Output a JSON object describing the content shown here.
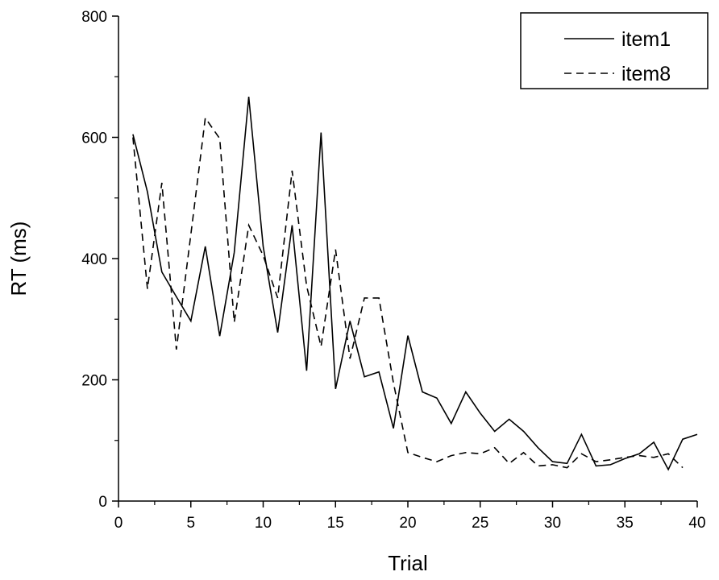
{
  "chart_data": {
    "type": "line",
    "xlabel": "Trial",
    "ylabel": "RT (ms)",
    "xlim": [
      0,
      40
    ],
    "ylim": [
      0,
      800
    ],
    "x_ticks": [
      0,
      5,
      10,
      15,
      20,
      25,
      30,
      35,
      40
    ],
    "y_ticks": [
      0,
      200,
      400,
      600,
      800
    ],
    "legend_position": "top-right",
    "grid": false,
    "x": [
      1,
      2,
      3,
      4,
      5,
      6,
      7,
      8,
      9,
      10,
      11,
      12,
      13,
      14,
      15,
      16,
      17,
      18,
      19,
      20,
      21,
      22,
      23,
      24,
      25,
      26,
      27,
      28,
      29,
      30,
      31,
      32,
      33,
      34,
      35,
      36,
      37,
      38,
      39,
      40
    ],
    "series": [
      {
        "name": "item1",
        "style": "solid",
        "color": "#000000",
        "values": [
          605,
          510,
          378,
          337,
          297,
          420,
          272,
          410,
          667,
          420,
          278,
          455,
          215,
          608,
          185,
          297,
          205,
          213,
          120,
          273,
          180,
          170,
          128,
          180,
          145,
          115,
          135,
          115,
          88,
          65,
          62,
          110,
          58,
          60,
          70,
          78,
          97,
          52,
          102,
          110
        ]
      },
      {
        "name": "item8",
        "style": "dashed",
        "color": "#000000",
        "values": [
          600,
          350,
          525,
          250,
          440,
          632,
          598,
          295,
          455,
          405,
          335,
          545,
          355,
          255,
          415,
          235,
          335,
          335,
          195,
          80,
          72,
          65,
          75,
          80,
          78,
          88,
          62,
          80,
          58,
          60,
          55,
          78,
          65,
          68,
          72,
          75,
          72,
          78,
          55,
          null
        ]
      }
    ]
  }
}
